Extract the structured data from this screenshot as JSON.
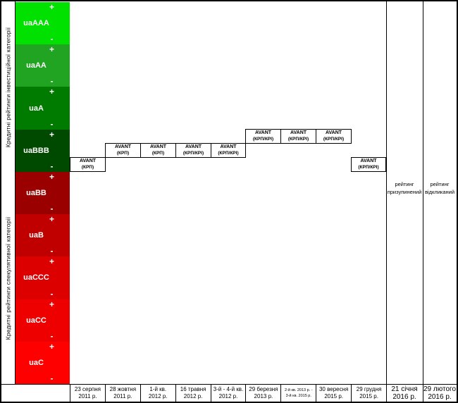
{
  "left_axis": {
    "investment_label": "Кредитні рейтинги інвестиційної категорії",
    "speculative_label": "Кредитні рейтинги спекулятивної категорії",
    "plus_sign": "+",
    "minus_sign": "-",
    "bands": [
      {
        "name": "uaAAA",
        "color": "#00e100"
      },
      {
        "name": "uaAA",
        "color": "#21a421"
      },
      {
        "name": "uaA",
        "color": "#007b00"
      },
      {
        "name": "uaBBB",
        "color": "#004a00"
      },
      {
        "name": "uaBB",
        "color": "#9b0000"
      },
      {
        "name": "uaB",
        "color": "#c00000"
      },
      {
        "name": "uaCCC",
        "color": "#dd0000"
      },
      {
        "name": "uaCC",
        "color": "#ee0000"
      },
      {
        "name": "uaC",
        "color": "#ff0000"
      }
    ]
  },
  "events": [
    {
      "date": "23 серпня 2011 р.",
      "rating": "uaBBB-",
      "line1": "AVANT",
      "line2": "(КРП)"
    },
    {
      "date": "28 жовтня 2011 р.",
      "rating": "uaBBB",
      "line1": "AVANT",
      "line2": "(КРП)"
    },
    {
      "date": "1-й кв. 2012 р.",
      "rating": "uaBBB",
      "line1": "AVANT",
      "line2": "(КРП)"
    },
    {
      "date": "16 травня 2012 р.",
      "rating": "uaBBB",
      "line1": "AVANT",
      "line2": "(КРП/КРІ)"
    },
    {
      "date": "3-й - 4-й кв. 2012 р.",
      "rating": "uaBBB",
      "line1": "AVANT",
      "line2": "(КРП/КРІ)"
    },
    {
      "date": "29 березня 2013 р.",
      "rating": "uaBBB+",
      "line1": "AVANT",
      "line2": "(КРП/КРІ)"
    },
    {
      "date": "2-й кв. 2013 р. - 3-й кв. 2015 р.",
      "rating": "uaBBB+",
      "line1": "AVANT",
      "line2": "(КРП/КРІ)"
    },
    {
      "date": "30 вересня 2015 р.",
      "rating": "uaBBB+",
      "line1": "AVANT",
      "line2": "(КРП/КРІ)"
    },
    {
      "date": "29 грудня 2015 р.",
      "rating": "uaBBB-",
      "line1": "AVANT",
      "line2": "(КРП/КРІ)"
    }
  ],
  "x_axis": {
    "labels": [
      {
        "line1": "23 серпня",
        "line2": "2011 р."
      },
      {
        "line1": "28 жовтня",
        "line2": "2011 р."
      },
      {
        "line1": "1-й кв.",
        "line2": "2012 р."
      },
      {
        "line1": "16 травня",
        "line2": "2012 р."
      },
      {
        "line1": "3-й - 4-й кв.",
        "line2": "2012 р."
      },
      {
        "line1": "29 березня",
        "line2": "2013 р."
      },
      {
        "line1": "2-й кв. 2013 р. -",
        "line2": "3-й кв. 2015 р."
      },
      {
        "line1": "30 вересня",
        "line2": "2015 р."
      },
      {
        "line1": "29 грудня",
        "line2": "2015 р."
      }
    ]
  },
  "right_columns": {
    "suspended": {
      "label_line1": "рейтинг",
      "label_line2": "призупинений",
      "date_line1": "21 січня",
      "date_line2": "2016 р."
    },
    "withdrawn": {
      "label_line1": "рейтинг",
      "label_line2": "відкликаний",
      "date_line1": "29 лютого",
      "date_line2": "2016 р."
    }
  },
  "chart_data": {
    "type": "line",
    "x": [
      "23 серпня 2011 р.",
      "28 жовтня 2011 р.",
      "1-й кв. 2012 р.",
      "16 травня 2012 р.",
      "3-й - 4-й кв. 2012 р.",
      "29 березня 2013 р.",
      "2-й кв. 2013 р. - 3-й кв. 2015 р.",
      "30 вересня 2015 р.",
      "29 грудня 2015 р.",
      "21 січня 2016 р.",
      "29 лютого 2016 р."
    ],
    "series": [
      {
        "name": "AVANT",
        "values": [
          "uaBBB-",
          "uaBBB",
          "uaBBB",
          "uaBBB",
          "uaBBB",
          "uaBBB+",
          "uaBBB+",
          "uaBBB+",
          "uaBBB-",
          "рейтинг призупинений",
          "рейтинг відкликаний"
        ]
      }
    ],
    "y_categories_top_to_bottom": [
      "uaAAA",
      "uaAA",
      "uaA",
      "uaBBB",
      "uaBB",
      "uaB",
      "uaCCC",
      "uaCC",
      "uaC"
    ],
    "notches_per_category": [
      "+",
      "",
      "-"
    ],
    "y_group_labels": [
      "Кредитні рейтинги інвестиційної категорії",
      "Кредитні рейтинги спекулятивної категорії"
    ],
    "grid": false,
    "legend_position": "none"
  }
}
